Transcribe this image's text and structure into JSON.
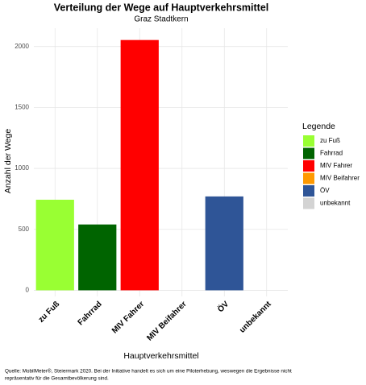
{
  "chart_data": {
    "type": "bar",
    "title": "Verteilung der Wege auf Hauptverkehrsmittel",
    "subtitle": "Graz Stadtkern",
    "x_label": "Hauptverkehrsmittel",
    "y_label": "Anzahl der Wege",
    "categories": [
      "zu Fuß",
      "Fahrrad",
      "MIV Fahrer",
      "MIV Beifahrer",
      "ÖV",
      "unbekannt"
    ],
    "values": [
      743,
      540,
      2053,
      0,
      770,
      0
    ],
    "colors": [
      "#99ff33",
      "#006400",
      "#ff0000",
      "#ff9900",
      "#2f5597",
      "#d3d3d3"
    ],
    "ylim": [
      -50,
      2150
    ],
    "yticks": [
      0,
      500,
      1000,
      1500,
      2000
    ],
    "grid": true,
    "legend": {
      "title": "Legende",
      "position": "right"
    },
    "caption": [
      "Quelle: MobilMeter®, Steiermark 2020. Bei der Initiative handelt es sich um eine Piloterhebung, weswegen die Ergebnisse nicht",
      "repräsentativ für die Gesamtbevölkerung sind."
    ]
  }
}
